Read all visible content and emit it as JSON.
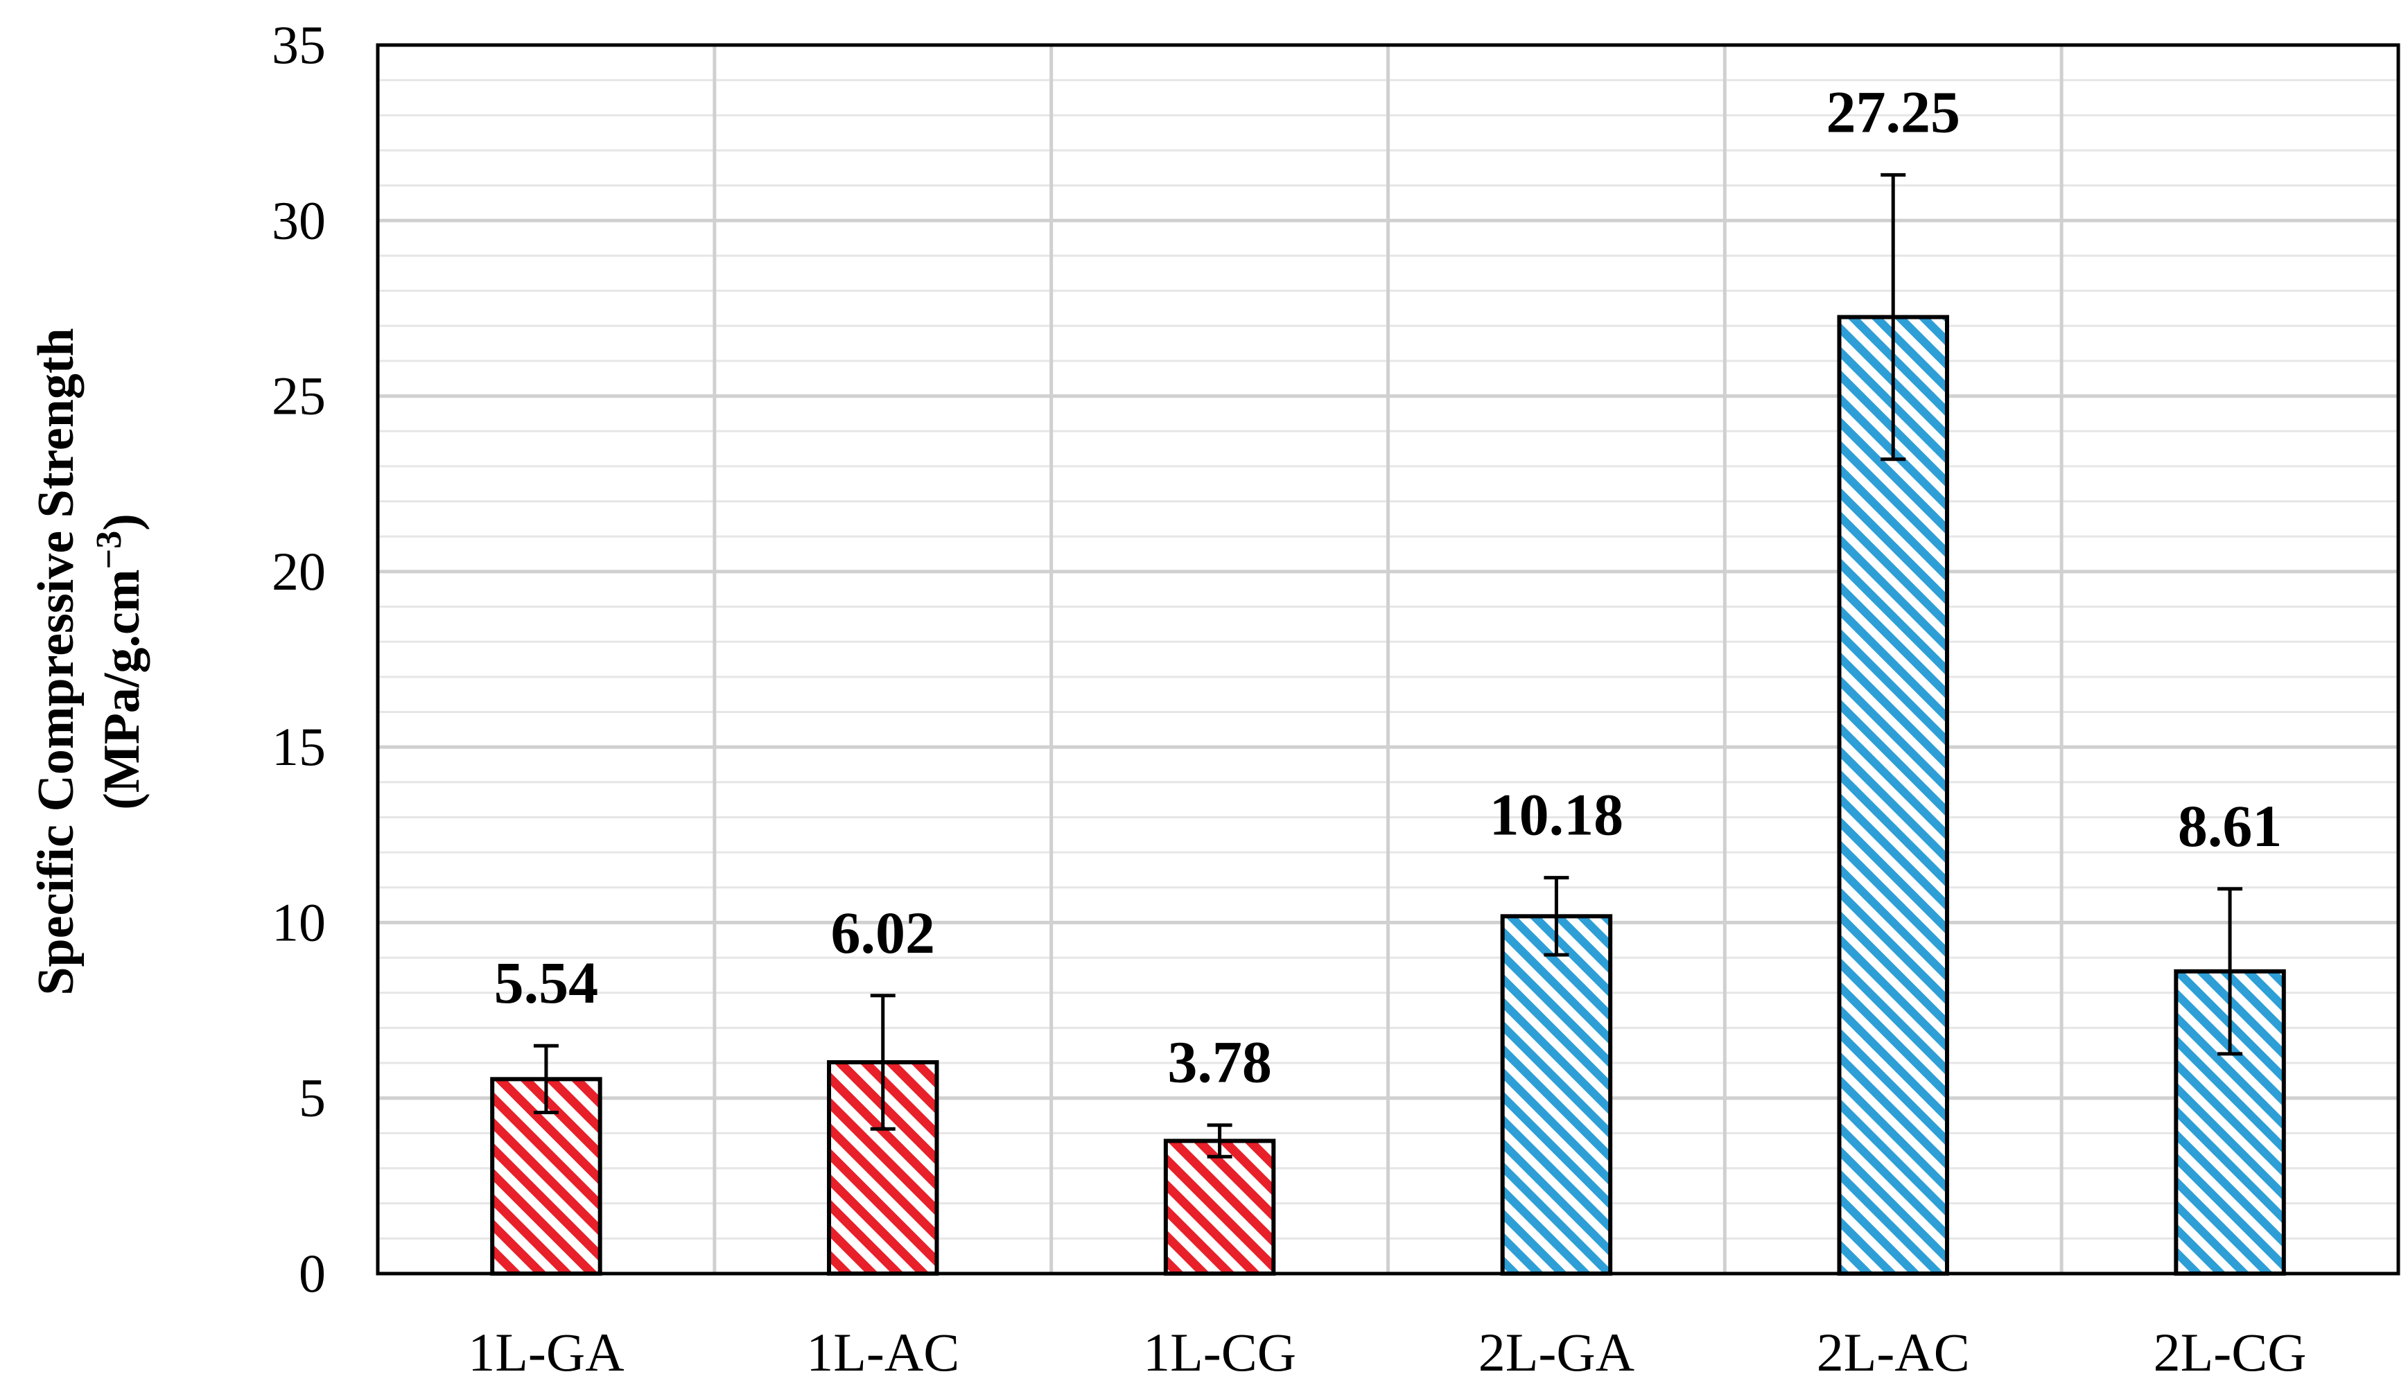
{
  "chart_data": {
    "type": "bar",
    "title": "",
    "xlabel": "",
    "ylabel_line1": "Specific Compressive Strength",
    "ylabel_line2": "(MPa/g.cm",
    "ylabel_sup": "−3",
    "ylabel_close": ")",
    "ylim": [
      0,
      35
    ],
    "yticks": [
      0,
      5,
      10,
      15,
      20,
      25,
      30,
      35
    ],
    "grid": true,
    "legend": "none",
    "categories": [
      "1L-GA",
      "1L-AC",
      "1L-CG",
      "2L-GA",
      "2L-AC",
      "2L-CG"
    ],
    "values": [
      5.54,
      6.02,
      3.78,
      10.18,
      27.25,
      8.61
    ],
    "value_labels": [
      "5.54",
      "6.02",
      "3.78",
      "10.18",
      "27.25",
      "8.61"
    ],
    "error": [
      0.95,
      1.9,
      0.45,
      1.1,
      4.05,
      2.35
    ],
    "bar_colors": [
      "#e8202a",
      "#e8202a",
      "#e8202a",
      "#2e9fd6",
      "#2e9fd6",
      "#2e9fd6"
    ]
  }
}
